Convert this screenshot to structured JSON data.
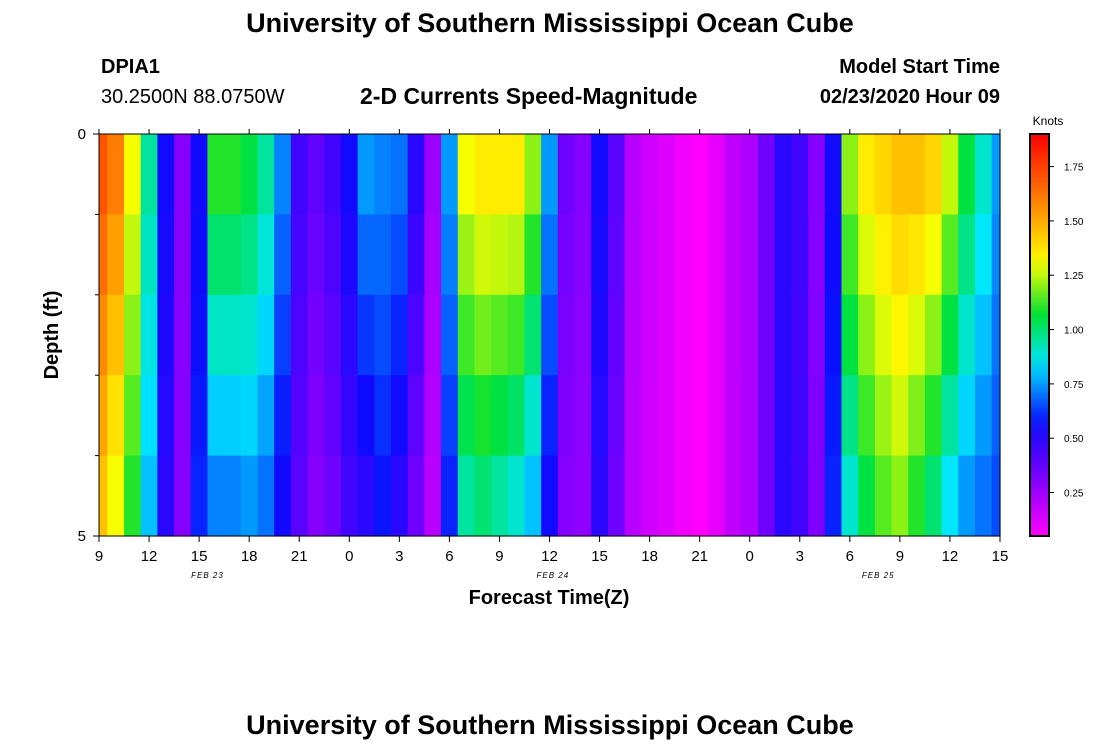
{
  "header": {
    "title": "University of Southern Mississippi Ocean Cube",
    "station_id": "DPIA1",
    "coordinates": "30.2500N 88.0750W",
    "subtitle": "2-D Currents Speed-Magnitude",
    "model_start_label": "Model Start Time",
    "model_start_value": "02/23/2020 Hour 09"
  },
  "footer": {
    "title": "University of Southern Mississippi Ocean Cube"
  },
  "chart_data": {
    "type": "heatmap",
    "title": "2-D Currents Speed-Magnitude",
    "xlabel": "Forecast Time(Z)",
    "ylabel": "Depth (ft)",
    "x_start_hour": 9,
    "x_hours_total": 54,
    "x_ticks": [
      {
        "hour": 0,
        "label": "9"
      },
      {
        "hour": 3,
        "label": "12"
      },
      {
        "hour": 6,
        "label": "15"
      },
      {
        "hour": 9,
        "label": "18"
      },
      {
        "hour": 12,
        "label": "21"
      },
      {
        "hour": 15,
        "label": "0"
      },
      {
        "hour": 18,
        "label": "3"
      },
      {
        "hour": 21,
        "label": "6"
      },
      {
        "hour": 24,
        "label": "9"
      },
      {
        "hour": 27,
        "label": "12"
      },
      {
        "hour": 30,
        "label": "15"
      },
      {
        "hour": 33,
        "label": "18"
      },
      {
        "hour": 36,
        "label": "21"
      },
      {
        "hour": 39,
        "label": "0"
      },
      {
        "hour": 42,
        "label": "3"
      },
      {
        "hour": 45,
        "label": "6"
      },
      {
        "hour": 48,
        "label": "9"
      },
      {
        "hour": 51,
        "label": "12"
      },
      {
        "hour": 54,
        "label": "15"
      }
    ],
    "date_labels": [
      {
        "hour": 6.5,
        "label": "FEB 23"
      },
      {
        "hour": 27.2,
        "label": "FEB 24"
      },
      {
        "hour": 46.7,
        "label": "FEB 25"
      }
    ],
    "y_range": [
      0,
      5
    ],
    "y_ticks": [
      {
        "value": 0,
        "label": "0"
      },
      {
        "value": 5,
        "label": "5"
      }
    ],
    "y_minor_ticks": [
      1,
      2,
      3,
      4
    ],
    "depth_rows": 5,
    "colorbar": {
      "label": "Knots",
      "range": [
        0.05,
        1.9
      ],
      "ticks": [
        "0.25",
        "0.50",
        "0.75",
        "1.00",
        "1.25",
        "1.50",
        "1.75"
      ],
      "tick_values": [
        0.25,
        0.5,
        0.75,
        1.0,
        1.25,
        1.5,
        1.75
      ]
    },
    "speed_knots_by_hour": [
      {
        "hour": 9,
        "surface": 1.7,
        "bottom": 1.45
      },
      {
        "hour": 10,
        "surface": 1.6,
        "bottom": 1.3
      },
      {
        "hour": 11,
        "surface": 1.3,
        "bottom": 1.1
      },
      {
        "hour": 12,
        "surface": 0.95,
        "bottom": 0.8
      },
      {
        "hour": 13,
        "surface": 0.55,
        "bottom": 0.5
      },
      {
        "hour": 14,
        "surface": 0.3,
        "bottom": 0.3
      },
      {
        "hour": 15,
        "surface": 0.55,
        "bottom": 0.6
      },
      {
        "hour": 16,
        "surface": 1.1,
        "bottom": 0.72
      },
      {
        "hour": 17,
        "surface": 1.1,
        "bottom": 0.72
      },
      {
        "hour": 18,
        "surface": 1.05,
        "bottom": 0.75
      },
      {
        "hour": 19,
        "surface": 0.95,
        "bottom": 0.7
      },
      {
        "hour": 20,
        "surface": 0.72,
        "bottom": 0.55
      },
      {
        "hour": 21,
        "surface": 0.45,
        "bottom": 0.4
      },
      {
        "hour": 22,
        "surface": 0.38,
        "bottom": 0.3
      },
      {
        "hour": 23,
        "surface": 0.45,
        "bottom": 0.35
      },
      {
        "hour": 0,
        "surface": 0.55,
        "bottom": 0.45
      },
      {
        "hour": 1,
        "surface": 0.75,
        "bottom": 0.5
      },
      {
        "hour": 2,
        "surface": 0.72,
        "bottom": 0.58
      },
      {
        "hour": 3,
        "surface": 0.7,
        "bottom": 0.5
      },
      {
        "hour": 4,
        "surface": 0.5,
        "bottom": 0.35
      },
      {
        "hour": 5,
        "surface": 0.25,
        "bottom": 0.2
      },
      {
        "hour": 6,
        "surface": 0.75,
        "bottom": 0.6
      },
      {
        "hour": 7,
        "surface": 1.3,
        "bottom": 0.95
      },
      {
        "hour": 8,
        "surface": 1.35,
        "bottom": 1.0
      },
      {
        "hour": 9,
        "surface": 1.35,
        "bottom": 0.95
      },
      {
        "hour": 10,
        "surface": 1.35,
        "bottom": 0.9
      },
      {
        "hour": 11,
        "surface": 1.2,
        "bottom": 0.8
      },
      {
        "hour": 12,
        "surface": 0.75,
        "bottom": 0.55
      },
      {
        "hour": 13,
        "surface": 0.35,
        "bottom": 0.3
      },
      {
        "hour": 14,
        "surface": 0.3,
        "bottom": 0.28
      },
      {
        "hour": 15,
        "surface": 0.55,
        "bottom": 0.5
      },
      {
        "hour": 16,
        "surface": 0.4,
        "bottom": 0.35
      },
      {
        "hour": 17,
        "surface": 0.2,
        "bottom": 0.2
      },
      {
        "hour": 18,
        "surface": 0.15,
        "bottom": 0.15
      },
      {
        "hour": 19,
        "surface": 0.12,
        "bottom": 0.12
      },
      {
        "hour": 20,
        "surface": 0.08,
        "bottom": 0.08
      },
      {
        "hour": 21,
        "surface": 0.05,
        "bottom": 0.05
      },
      {
        "hour": 22,
        "surface": 0.1,
        "bottom": 0.1
      },
      {
        "hour": 23,
        "surface": 0.18,
        "bottom": 0.18
      },
      {
        "hour": 0,
        "surface": 0.22,
        "bottom": 0.22
      },
      {
        "hour": 1,
        "surface": 0.35,
        "bottom": 0.35
      },
      {
        "hour": 2,
        "surface": 0.5,
        "bottom": 0.5
      },
      {
        "hour": 3,
        "surface": 0.45,
        "bottom": 0.45
      },
      {
        "hour": 4,
        "surface": 0.3,
        "bottom": 0.32
      },
      {
        "hour": 5,
        "surface": 0.55,
        "bottom": 0.6
      },
      {
        "hour": 6,
        "surface": 1.2,
        "bottom": 0.9
      },
      {
        "hour": 7,
        "surface": 1.35,
        "bottom": 1.05
      },
      {
        "hour": 8,
        "surface": 1.4,
        "bottom": 1.15
      },
      {
        "hour": 9,
        "surface": 1.45,
        "bottom": 1.2
      },
      {
        "hour": 10,
        "surface": 1.45,
        "bottom": 1.1
      },
      {
        "hour": 11,
        "surface": 1.4,
        "bottom": 1.0
      },
      {
        "hour": 12,
        "surface": 1.25,
        "bottom": 0.85
      },
      {
        "hour": 13,
        "surface": 1.05,
        "bottom": 0.75
      },
      {
        "hour": 14,
        "surface": 0.9,
        "bottom": 0.7
      },
      {
        "hour": 15,
        "surface": 0.75,
        "bottom": 0.65
      }
    ]
  }
}
